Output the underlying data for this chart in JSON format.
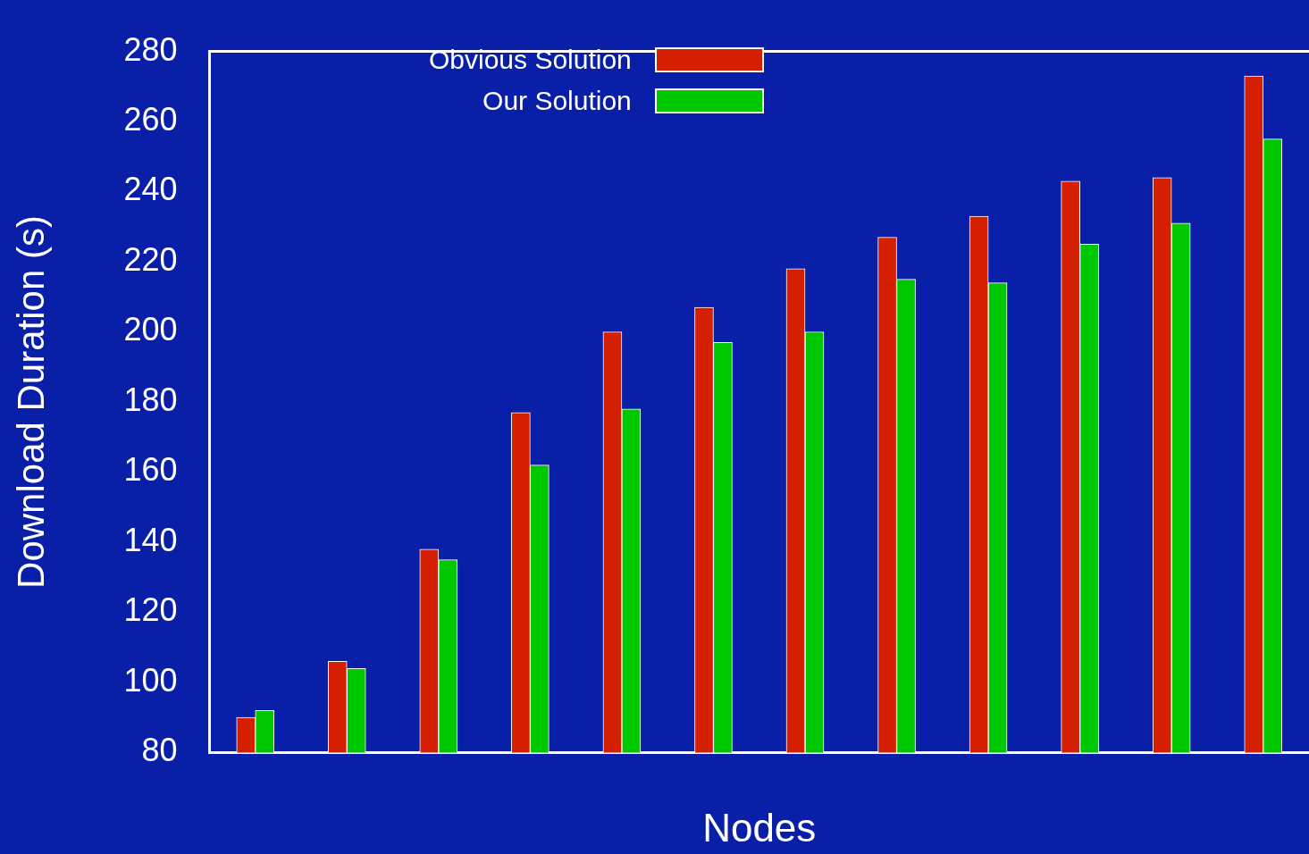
{
  "chart_data": {
    "type": "bar",
    "xlabel": "Nodes",
    "ylabel": "Download Duration (s)",
    "categories": [
      null,
      null,
      null,
      null,
      null,
      null,
      null,
      null,
      null,
      null,
      null,
      null
    ],
    "series": [
      {
        "name": "Obvious Solution",
        "color": "#d42000",
        "values": [
          90,
          106,
          138,
          177,
          200,
          207,
          218,
          227,
          233,
          243,
          244,
          273
        ]
      },
      {
        "name": "Our Solution",
        "color": "#00c800",
        "values": [
          92,
          104,
          135,
          162,
          178,
          197,
          200,
          215,
          214,
          225,
          231,
          255
        ]
      }
    ],
    "ylim": [
      80,
      280
    ],
    "yticks": [
      80,
      100,
      120,
      140,
      160,
      180,
      200,
      220,
      240,
      260,
      280
    ],
    "grid": false,
    "legend": "top"
  }
}
